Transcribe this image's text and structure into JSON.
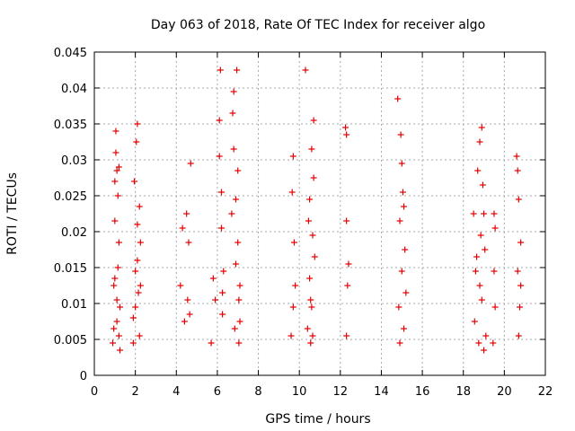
{
  "chart_data": {
    "type": "scatter",
    "title": "Day 063 of 2018, Rate Of TEC Index for receiver algo",
    "xlabel": "GPS time / hours",
    "ylabel": "ROTI / TECUs",
    "xlim": [
      0,
      22
    ],
    "ylim": [
      0,
      0.045
    ],
    "x_ticks": [
      "0",
      "2",
      "4",
      "6",
      "8",
      "10",
      "12",
      "14",
      "16",
      "18",
      "20",
      "22"
    ],
    "y_ticks": [
      "0",
      "0.005",
      "0.01",
      "0.015",
      "0.02",
      "0.025",
      "0.03",
      "0.035",
      "0.04",
      "0.045"
    ],
    "grid": true,
    "marker": "+",
    "color": "#e00000",
    "series": [
      {
        "name": "ROTI",
        "points": [
          [
            0.9,
            0.0045
          ],
          [
            0.95,
            0.0125
          ],
          [
            1.0,
            0.027
          ],
          [
            1.05,
            0.034
          ],
          [
            1.1,
            0.0075
          ],
          [
            1.15,
            0.015
          ],
          [
            1.2,
            0.029
          ],
          [
            1.25,
            0.0035
          ],
          [
            1.0,
            0.0215
          ],
          [
            1.1,
            0.0105
          ],
          [
            1.2,
            0.0185
          ],
          [
            1.05,
            0.031
          ],
          [
            0.95,
            0.0065
          ],
          [
            1.15,
            0.025
          ],
          [
            1.25,
            0.0095
          ],
          [
            1.0,
            0.0135
          ],
          [
            1.1,
            0.0285
          ],
          [
            1.2,
            0.0055
          ],
          [
            1.9,
            0.008
          ],
          [
            2.0,
            0.0145
          ],
          [
            2.1,
            0.021
          ],
          [
            2.2,
            0.0055
          ],
          [
            2.05,
            0.0325
          ],
          [
            2.15,
            0.0115
          ],
          [
            1.95,
            0.027
          ],
          [
            2.25,
            0.0185
          ],
          [
            2.1,
            0.035
          ],
          [
            2.0,
            0.0095
          ],
          [
            2.2,
            0.0235
          ],
          [
            1.9,
            0.0045
          ],
          [
            2.1,
            0.016
          ],
          [
            2.25,
            0.0125
          ],
          [
            4.2,
            0.0125
          ],
          [
            4.3,
            0.0205
          ],
          [
            4.4,
            0.0075
          ],
          [
            4.55,
            0.0105
          ],
          [
            4.6,
            0.0185
          ],
          [
            4.7,
            0.0295
          ],
          [
            4.65,
            0.0085
          ],
          [
            4.5,
            0.0225
          ],
          [
            5.7,
            0.0045
          ],
          [
            5.8,
            0.0135
          ],
          [
            5.9,
            0.0105
          ],
          [
            6.1,
            0.0305
          ],
          [
            6.15,
            0.0425
          ],
          [
            6.2,
            0.0205
          ],
          [
            6.25,
            0.0085
          ],
          [
            6.1,
            0.0355
          ],
          [
            6.3,
            0.0145
          ],
          [
            6.2,
            0.0255
          ],
          [
            6.25,
            0.0115
          ],
          [
            6.7,
            0.0225
          ],
          [
            6.8,
            0.0395
          ],
          [
            6.85,
            0.0065
          ],
          [
            6.9,
            0.0155
          ],
          [
            6.95,
            0.0425
          ],
          [
            7.0,
            0.0285
          ],
          [
            7.05,
            0.0105
          ],
          [
            6.8,
            0.0315
          ],
          [
            6.9,
            0.0245
          ],
          [
            7.0,
            0.0185
          ],
          [
            7.05,
            0.0045
          ],
          [
            7.1,
            0.0125
          ],
          [
            6.75,
            0.0365
          ],
          [
            7.1,
            0.0075
          ],
          [
            9.6,
            0.0055
          ],
          [
            9.65,
            0.0255
          ],
          [
            9.7,
            0.0305
          ],
          [
            9.8,
            0.0125
          ],
          [
            9.75,
            0.0185
          ],
          [
            9.7,
            0.0095
          ],
          [
            10.3,
            0.0425
          ],
          [
            10.4,
            0.0065
          ],
          [
            10.5,
            0.0135
          ],
          [
            10.5,
            0.0245
          ],
          [
            10.55,
            0.0045
          ],
          [
            10.6,
            0.0315
          ],
          [
            10.65,
            0.0195
          ],
          [
            10.7,
            0.0355
          ],
          [
            10.6,
            0.0095
          ],
          [
            10.7,
            0.0275
          ],
          [
            10.75,
            0.0165
          ],
          [
            10.65,
            0.0055
          ],
          [
            10.45,
            0.0215
          ],
          [
            10.55,
            0.0105
          ],
          [
            12.25,
            0.0345
          ],
          [
            12.3,
            0.0215
          ],
          [
            12.3,
            0.0055
          ],
          [
            12.35,
            0.0125
          ],
          [
            12.3,
            0.0335
          ],
          [
            12.4,
            0.0155
          ],
          [
            14.8,
            0.0385
          ],
          [
            14.85,
            0.0095
          ],
          [
            14.9,
            0.0215
          ],
          [
            14.95,
            0.0335
          ],
          [
            15.0,
            0.0145
          ],
          [
            15.05,
            0.0255
          ],
          [
            15.1,
            0.0065
          ],
          [
            15.15,
            0.0175
          ],
          [
            15.0,
            0.0295
          ],
          [
            15.2,
            0.0115
          ],
          [
            14.9,
            0.0045
          ],
          [
            15.1,
            0.0235
          ],
          [
            18.5,
            0.0225
          ],
          [
            18.55,
            0.0075
          ],
          [
            18.6,
            0.0145
          ],
          [
            18.7,
            0.0285
          ],
          [
            18.75,
            0.0045
          ],
          [
            18.8,
            0.0325
          ],
          [
            18.85,
            0.0195
          ],
          [
            18.9,
            0.0105
          ],
          [
            18.95,
            0.0265
          ],
          [
            19.0,
            0.0035
          ],
          [
            19.05,
            0.0175
          ],
          [
            19.1,
            0.0055
          ],
          [
            18.9,
            0.0345
          ],
          [
            18.8,
            0.0125
          ],
          [
            19.0,
            0.0225
          ],
          [
            18.65,
            0.0165
          ],
          [
            19.5,
            0.0225
          ],
          [
            19.55,
            0.0095
          ],
          [
            19.5,
            0.0145
          ],
          [
            19.45,
            0.0045
          ],
          [
            19.55,
            0.0205
          ],
          [
            20.6,
            0.0305
          ],
          [
            20.65,
            0.0145
          ],
          [
            20.7,
            0.0245
          ],
          [
            20.75,
            0.0095
          ],
          [
            20.8,
            0.0185
          ],
          [
            20.7,
            0.0055
          ],
          [
            20.65,
            0.0285
          ],
          [
            20.8,
            0.0125
          ]
        ]
      }
    ]
  }
}
